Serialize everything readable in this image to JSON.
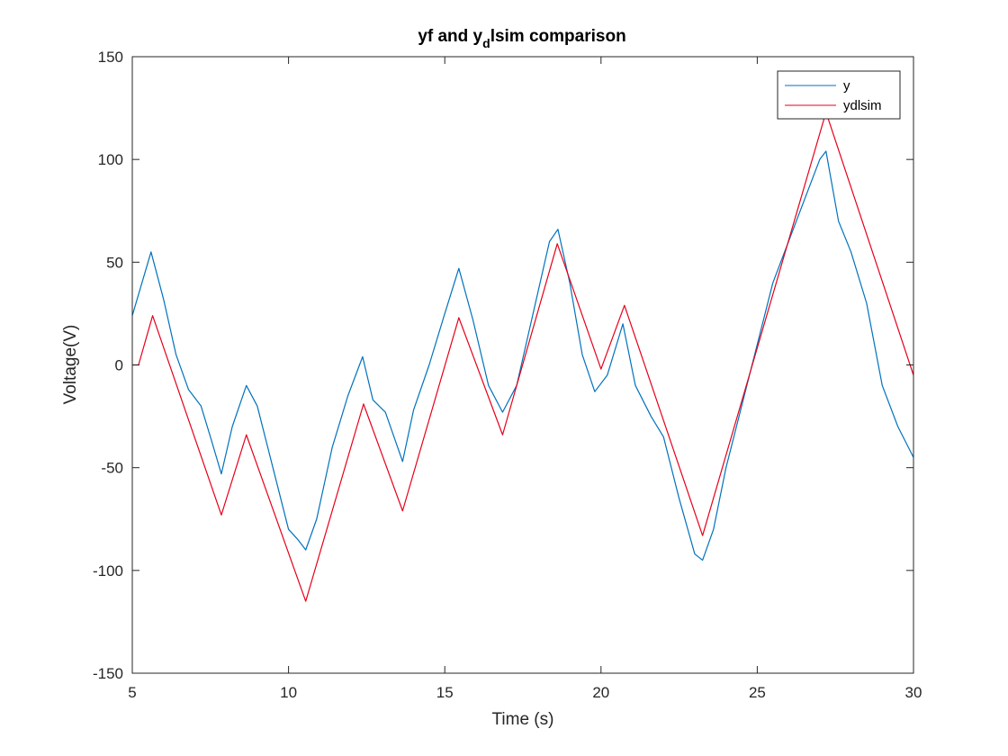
{
  "chart_data": {
    "type": "line",
    "title": {
      "main": "yf and y",
      "subscript": "d",
      "rest": "lsim comparison"
    },
    "xlabel": "Time (s)",
    "ylabel": "Voltage(V)",
    "xlim": [
      5,
      30
    ],
    "ylim": [
      -150,
      150
    ],
    "xticks": [
      5,
      10,
      15,
      20,
      25,
      30
    ],
    "yticks": [
      -150,
      -100,
      -50,
      0,
      50,
      100,
      150
    ],
    "grid": false,
    "legend_position": "top-right",
    "series": [
      {
        "name": "y",
        "color": "#0072BD",
        "x": [
          5,
          5.6,
          6.0,
          6.4,
          6.8,
          7.2,
          7.5,
          7.85,
          8.2,
          8.65,
          9.0,
          9.5,
          10.0,
          10.3,
          10.55,
          10.9,
          11.4,
          11.9,
          12.37,
          12.7,
          13.1,
          13.65,
          14.0,
          14.5,
          15.0,
          15.45,
          15.9,
          16.4,
          16.85,
          17.3,
          17.9,
          18.35,
          18.62,
          19.0,
          19.4,
          19.8,
          20.2,
          20.7,
          21.1,
          21.6,
          22.0,
          22.5,
          23.0,
          23.25,
          23.6,
          24.0,
          24.5,
          25.0,
          25.5,
          26.0,
          26.5,
          27.0,
          27.2,
          27.6,
          28.0,
          28.5,
          29.0,
          29.5,
          30.0
        ],
        "y": [
          24,
          55,
          32,
          5,
          -12,
          -20,
          -35,
          -53,
          -30,
          -10,
          -20,
          -50,
          -80,
          -85,
          -90,
          -75,
          -40,
          -15,
          4,
          -17,
          -23,
          -47,
          -22,
          0,
          25,
          47,
          22,
          -10,
          -23,
          -10,
          30,
          60,
          66,
          40,
          5,
          -13,
          -5,
          20,
          -10,
          -25,
          -35,
          -65,
          -92,
          -95,
          -80,
          -50,
          -20,
          10,
          40,
          60,
          80,
          100,
          104,
          70,
          55,
          30,
          -10,
          -30,
          -45
        ]
      },
      {
        "name": "ydlsim",
        "color": "#E6001A",
        "x": [
          5,
          5.2,
          5.65,
          7.85,
          8.65,
          10.55,
          12.4,
          13.65,
          15.45,
          16.85,
          18.6,
          20.0,
          20.75,
          23.25,
          27.2,
          30.0
        ],
        "y": [
          0,
          0,
          24,
          -73,
          -34,
          -115,
          -19,
          -71,
          23,
          -34,
          59,
          -2,
          29,
          -83,
          123,
          -5
        ]
      }
    ]
  }
}
